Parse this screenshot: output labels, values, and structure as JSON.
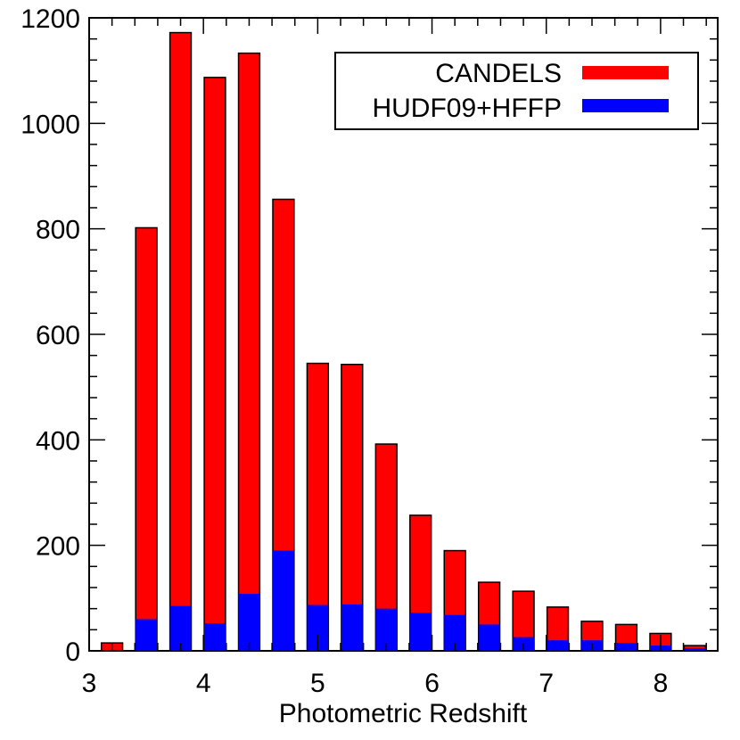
{
  "chart_data": {
    "type": "bar",
    "stacked": "overlaid",
    "xlabel": "Photometric Redshift",
    "ylabel": "",
    "xlim": [
      3.0,
      8.5
    ],
    "ylim": [
      0,
      1200
    ],
    "xticks": [
      "3",
      "4",
      "5",
      "6",
      "7",
      "8"
    ],
    "yticks": [
      "0",
      "200",
      "400",
      "600",
      "800",
      "1000",
      "1200"
    ],
    "bin_centers": [
      3.2,
      3.5,
      3.8,
      4.1,
      4.4,
      4.7,
      5.0,
      5.3,
      5.6,
      5.9,
      6.2,
      6.5,
      6.8,
      7.1,
      7.4,
      7.7,
      8.0,
      8.3
    ],
    "series": [
      {
        "name": "CANDELS",
        "color": "#ff0000",
        "values": [
          15,
          802,
          1172,
          1087,
          1133,
          856,
          545,
          543,
          392,
          257,
          190,
          130,
          113,
          83,
          56,
          50,
          33,
          10
        ]
      },
      {
        "name": "HUDF09+HFFP",
        "color": "#0000ff",
        "values": [
          0,
          60,
          85,
          52,
          108,
          190,
          87,
          88,
          80,
          72,
          68,
          50,
          26,
          20,
          20,
          15,
          10,
          5
        ]
      }
    ],
    "legend_position": "top-right",
    "grid": false
  }
}
